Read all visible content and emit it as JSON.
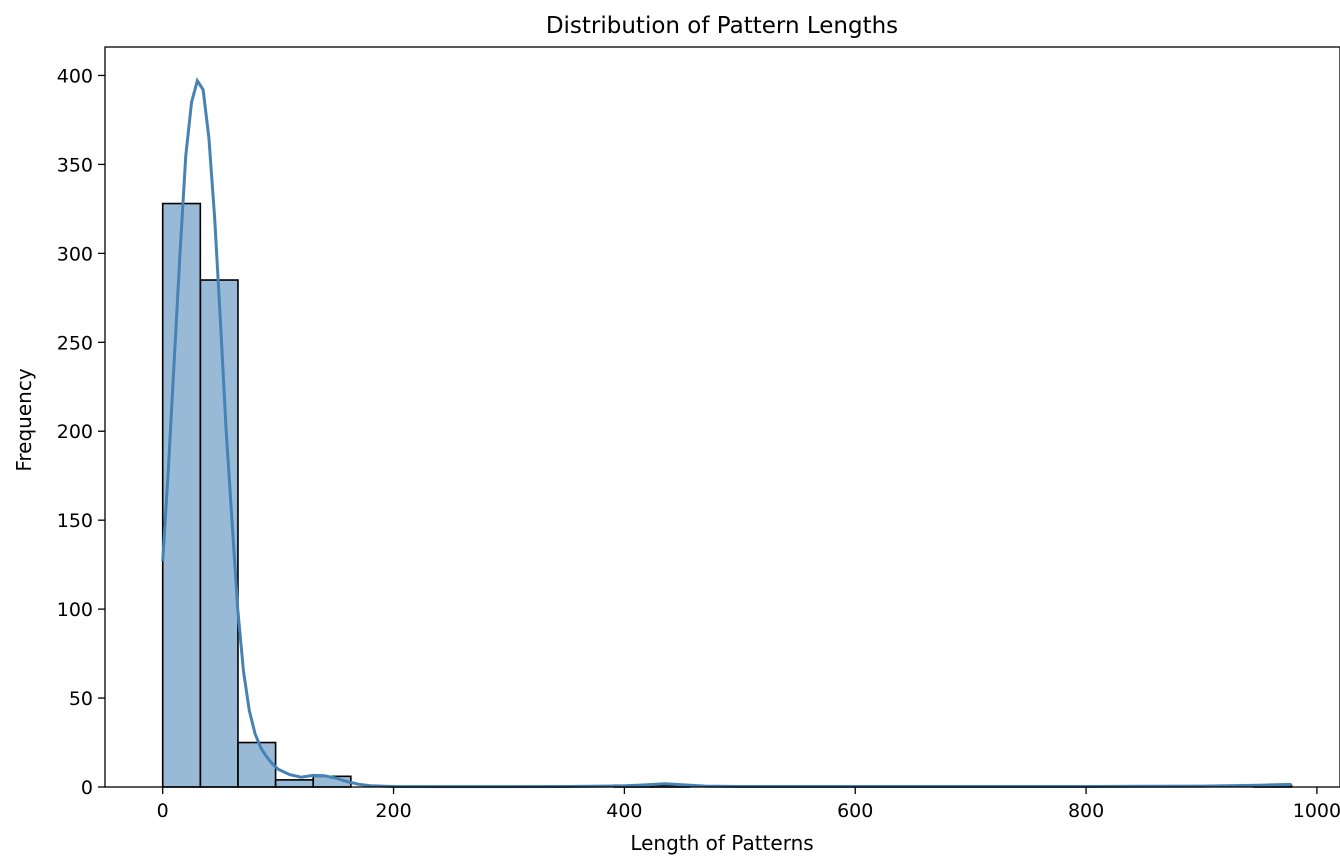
{
  "chart_data": {
    "type": "bar",
    "title": "Distribution of Pattern Lengths",
    "xlabel": "Length of Patterns",
    "ylabel": "Frequency",
    "xlim": [
      -50,
      1020
    ],
    "ylim": [
      0,
      416
    ],
    "x_ticks": [
      0,
      200,
      400,
      600,
      800,
      1000
    ],
    "y_ticks": [
      0,
      50,
      100,
      150,
      200,
      250,
      300,
      350,
      400
    ],
    "color": "#4682b4",
    "grid": false,
    "bins": [
      {
        "start": 0,
        "end": 32.6,
        "value": 328
      },
      {
        "start": 32.6,
        "end": 65.2,
        "value": 285
      },
      {
        "start": 65.2,
        "end": 97.8,
        "value": 25
      },
      {
        "start": 97.8,
        "end": 130.4,
        "value": 4
      },
      {
        "start": 130.4,
        "end": 163.0,
        "value": 6
      },
      {
        "start": 163.0,
        "end": 195.6,
        "value": 0
      },
      {
        "start": 195.6,
        "end": 228.2,
        "value": 0
      },
      {
        "start": 228.2,
        "end": 260.8,
        "value": 0
      },
      {
        "start": 260.8,
        "end": 293.4,
        "value": 0
      },
      {
        "start": 293.4,
        "end": 326.0,
        "value": 0
      },
      {
        "start": 326.0,
        "end": 358.6,
        "value": 0
      },
      {
        "start": 358.6,
        "end": 391.2,
        "value": 0
      },
      {
        "start": 391.2,
        "end": 423.8,
        "value": 1
      },
      {
        "start": 423.8,
        "end": 456.4,
        "value": 1
      },
      {
        "start": 456.4,
        "end": 489.0,
        "value": 0
      },
      {
        "start": 489.0,
        "end": 521.6,
        "value": 0
      },
      {
        "start": 521.6,
        "end": 554.2,
        "value": 0
      },
      {
        "start": 554.2,
        "end": 586.8,
        "value": 0
      },
      {
        "start": 586.8,
        "end": 619.4,
        "value": 0
      },
      {
        "start": 619.4,
        "end": 652.0,
        "value": 0
      },
      {
        "start": 652.0,
        "end": 684.6,
        "value": 0
      },
      {
        "start": 684.6,
        "end": 717.2,
        "value": 0
      },
      {
        "start": 717.2,
        "end": 749.8,
        "value": 0
      },
      {
        "start": 749.8,
        "end": 782.4,
        "value": 0
      },
      {
        "start": 782.4,
        "end": 815.0,
        "value": 0
      },
      {
        "start": 815.0,
        "end": 847.6,
        "value": 0
      },
      {
        "start": 847.6,
        "end": 880.2,
        "value": 0
      },
      {
        "start": 880.2,
        "end": 912.8,
        "value": 0
      },
      {
        "start": 912.8,
        "end": 945.4,
        "value": 0
      },
      {
        "start": 945.4,
        "end": 978.0,
        "value": 1
      }
    ],
    "kde": {
      "x": [
        0,
        5,
        10,
        15,
        20,
        25,
        30,
        35,
        40,
        45,
        50,
        55,
        60,
        65,
        70,
        75,
        80,
        85,
        90,
        95,
        100,
        110,
        120,
        130,
        140,
        150,
        160,
        170,
        180,
        200,
        250,
        300,
        350,
        400,
        420,
        435,
        450,
        470,
        500,
        600,
        700,
        800,
        900,
        950,
        978
      ],
      "y": [
        127,
        180,
        240,
        300,
        355,
        385,
        397,
        392,
        365,
        320,
        262,
        200,
        150,
        100,
        65,
        43,
        30,
        22,
        17,
        13,
        10,
        7,
        5.5,
        6.5,
        6.3,
        5,
        3,
        1.5,
        0.7,
        0.3,
        0.2,
        0.2,
        0.3,
        0.6,
        1.3,
        1.8,
        1.3,
        0.5,
        0.3,
        0.3,
        0.3,
        0.3,
        0.5,
        1.0,
        1.5
      ]
    }
  }
}
